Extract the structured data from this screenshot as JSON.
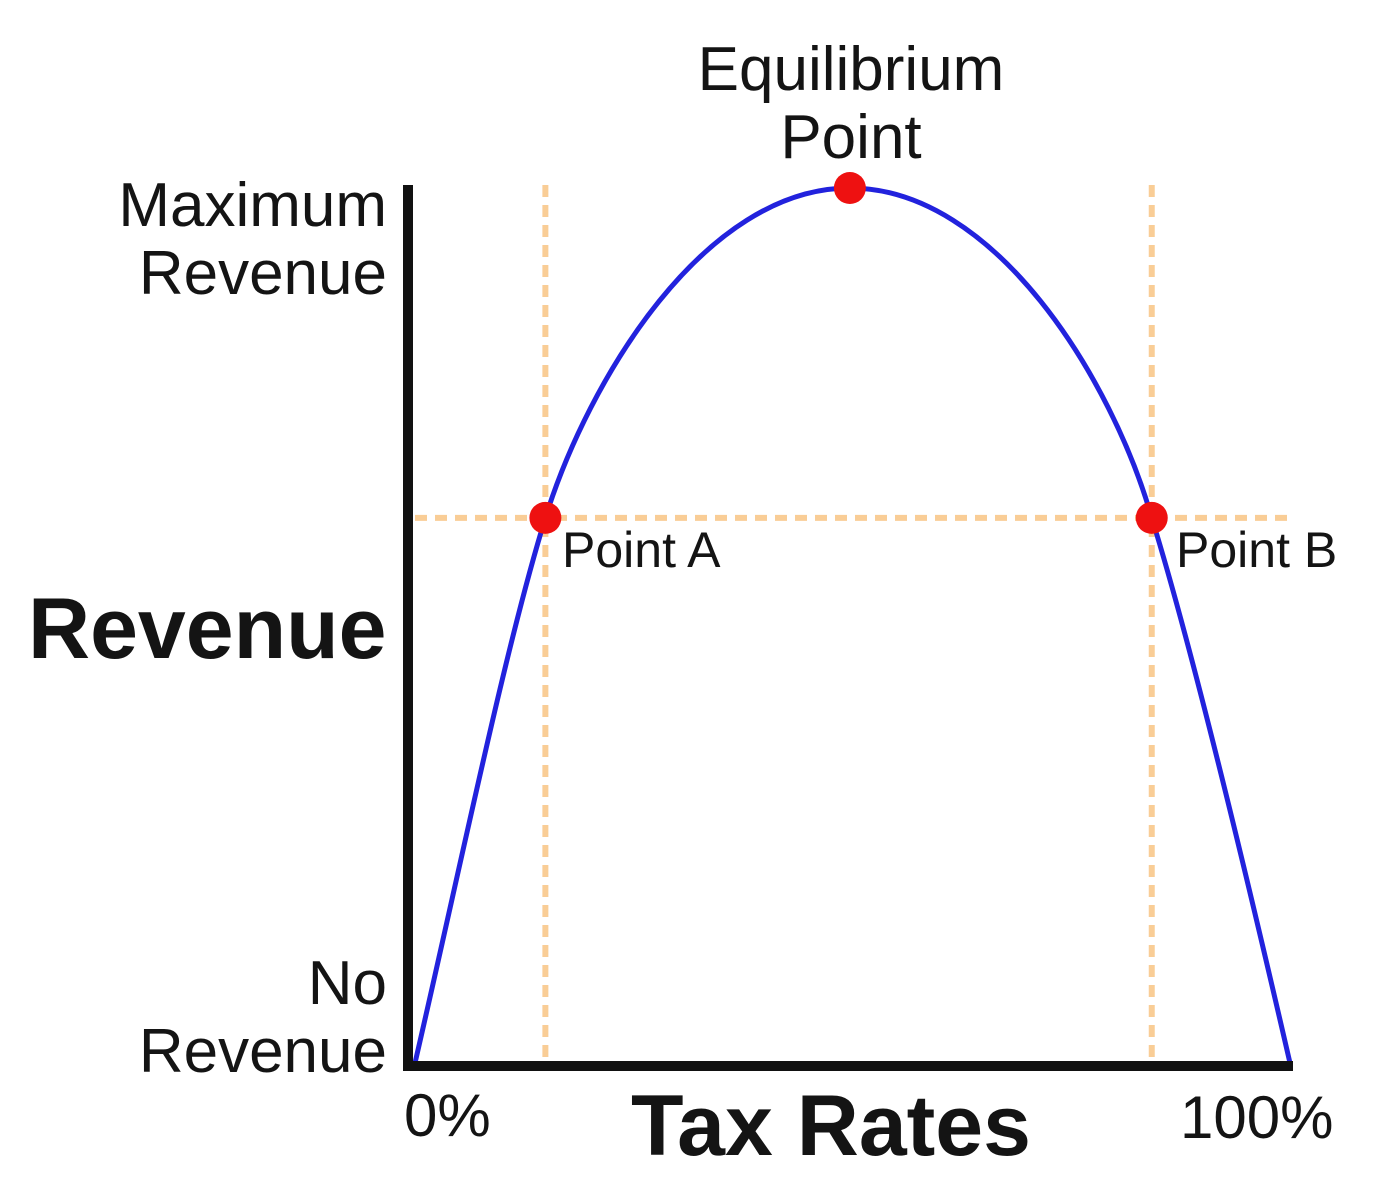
{
  "chart_data": {
    "type": "line",
    "title": "Equilibrium Point",
    "xlabel": "Tax Rates",
    "ylabel": "Revenue",
    "x_ticks": [
      {
        "pos": 0,
        "label": "0%"
      },
      {
        "pos": 1,
        "label": "100%"
      }
    ],
    "y_annotations": {
      "maximum": {
        "line1": "Maximum",
        "line2": "Revenue"
      },
      "minimum": {
        "line1": "No",
        "line2": "Revenue"
      }
    },
    "annotations": {
      "equilibrium": {
        "line1": "Equilibrium",
        "line2": "Point"
      },
      "point_a": "Point A",
      "point_b": "Point B"
    },
    "axis_range": {
      "x": [
        0,
        1
      ],
      "y": [
        0,
        1
      ]
    },
    "grid": false,
    "legend": false,
    "colors": {
      "curve": "#2222dd",
      "marker": "#ee1111",
      "guide": "#f9cd96",
      "axis": "#111111",
      "text": "#141414"
    },
    "curve": {
      "name": "revenue-vs-tax-rate",
      "start": [
        0.0,
        0.0
      ],
      "segments": [
        {
          "c1": [
            0.054,
            0.234
          ],
          "c2": [
            0.103,
            0.474
          ],
          "end": [
            0.149,
            0.623
          ]
        },
        {
          "c1": [
            0.198,
            0.781
          ],
          "c2": [
            0.331,
            1.0
          ],
          "end": [
            0.497,
            1.0
          ]
        },
        {
          "c1": [
            0.663,
            1.0
          ],
          "c2": [
            0.797,
            0.781
          ],
          "end": [
            0.842,
            0.623
          ]
        },
        {
          "c1": [
            0.888,
            0.474
          ],
          "c2": [
            0.946,
            0.234
          ],
          "end": [
            1.0,
            0.0
          ]
        }
      ]
    },
    "markers": [
      {
        "id": "point-a",
        "label": "Point A",
        "x": 0.149,
        "y": 0.623
      },
      {
        "id": "point-b",
        "label": "Point B",
        "x": 0.842,
        "y": 0.623
      },
      {
        "id": "equilibrium",
        "label": "Equilibrium Point",
        "x": 0.497,
        "y": 1.0
      }
    ],
    "guides": {
      "horizontal": [
        {
          "y": 0.623,
          "x1": 0.0,
          "x2": 1.0
        }
      ],
      "vertical": [
        {
          "x": 0.149
        },
        {
          "x": 0.842
        }
      ]
    }
  }
}
